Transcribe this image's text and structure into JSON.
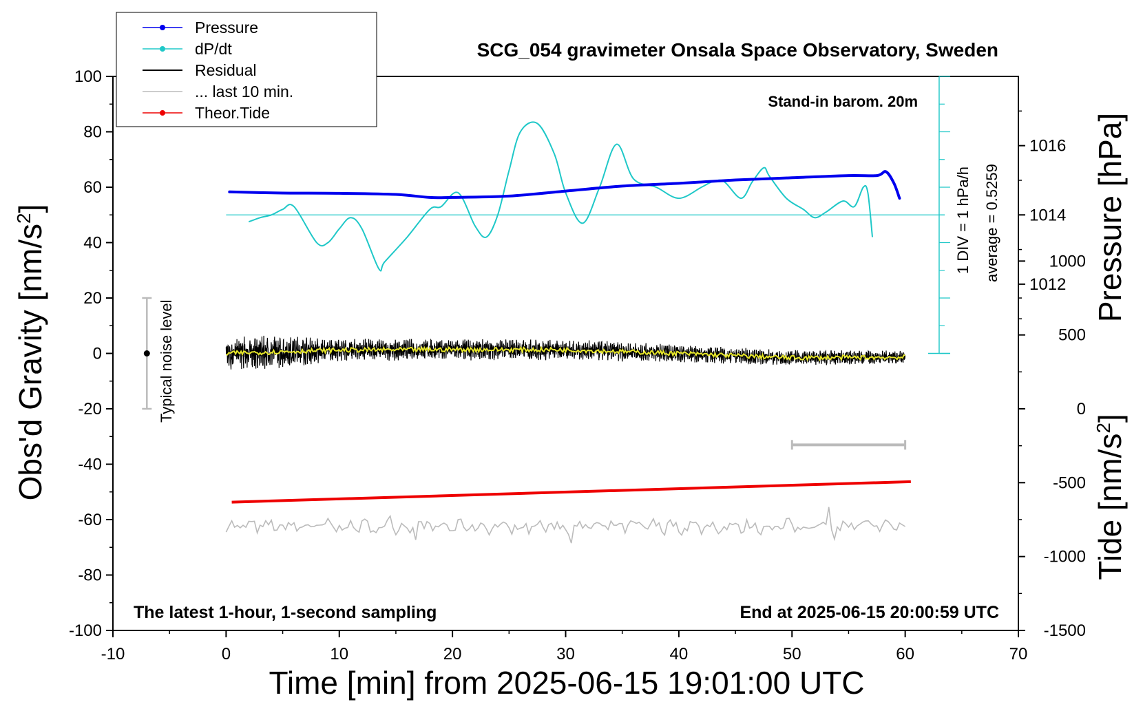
{
  "chart_data": {
    "type": "line",
    "title": "SCG_054 gravimeter Onsala Space Observatory, Sweden",
    "xlabel": "Time [min] from 2025-06-15 19:01:00 UTC",
    "ylabel_left_main": "Obs'd Gravity [nm/s",
    "ylabel_left_sup": "2",
    "ylabel_left_end": "]",
    "ylabel_right_top": "Pressure [hPa]",
    "ylabel_right_bottom_main": "Tide [nm/s",
    "ylabel_right_bottom_sup": "2",
    "ylabel_right_bottom_end": "]",
    "xlim": [
      -10,
      70
    ],
    "ylim": [
      -100,
      100
    ],
    "x_ticks": [
      -10,
      0,
      10,
      20,
      30,
      40,
      50,
      60,
      70
    ],
    "x_tick_labels": [
      "-10",
      "0",
      "10",
      "20",
      "30",
      "40",
      "50",
      "60",
      "70"
    ],
    "y_ticks": [
      -100,
      -80,
      -60,
      -40,
      -20,
      0,
      20,
      40,
      60,
      80,
      100
    ],
    "y_tick_labels": [
      "-100",
      "-80",
      "-60",
      "-40",
      "-20",
      "0",
      "20",
      "40",
      "60",
      "80",
      "100"
    ],
    "pressure_axis": {
      "ticks": [
        1012,
        1014,
        1016
      ],
      "tick_labels": [
        "1012",
        "1014",
        "1016"
      ],
      "pressure_at_0": 1014,
      "gravity_at_0": 50,
      "nms2_per_hpa": 12.5
    },
    "tide_axis": {
      "ticks": [
        -1500,
        -1000,
        -500,
        0,
        500,
        1000
      ],
      "tick_labels": [
        "-1500",
        "-1000",
        "-500",
        "0",
        "500",
        "1000"
      ],
      "nms2_tide_per_gravity_unit": 18.75,
      "tide_at_gravity_minus100": -1500
    },
    "annotations": {
      "barometer": "Stand-in barom. 20m",
      "latest": "The latest 1-hour, 1-second sampling",
      "end_at": "End at 2025-06-15 20:00:59 UTC",
      "div_label": "1 DIV = 1 hPa/h",
      "average_label": "average = 0.5259",
      "noise_label": "Typical noise level",
      "noise_range": [
        -20,
        20
      ],
      "noise_x": -7,
      "tenmin_bar": [
        50,
        60
      ],
      "tenmin_bar_y": -33
    },
    "legend": {
      "placement": "top-left",
      "entries": [
        {
          "label": "Pressure",
          "color": "#0000ee",
          "marker": true
        },
        {
          "label": "dP/dt",
          "color": "#1fc8c8",
          "marker": true
        },
        {
          "label": "Residual",
          "color": "#000000",
          "marker": false
        },
        {
          "label": "... last 10 min.",
          "color": "#bbbbbb",
          "marker": false
        },
        {
          "label": "Theor.Tide",
          "color": "#ee0000",
          "marker": true
        }
      ]
    },
    "series": [
      {
        "name": "Pressure",
        "color": "#0000ee",
        "x": [
          0.3,
          5,
          10,
          15,
          18,
          20,
          25,
          30,
          35,
          40,
          45,
          50,
          55,
          57.5,
          58.3,
          59,
          59.5
        ],
        "y": [
          58.3,
          57.9,
          57.8,
          57.4,
          56.3,
          56.3,
          56.8,
          58.6,
          60.4,
          61.4,
          62.6,
          63.4,
          64.2,
          64.2,
          65.6,
          61.5,
          56.0
        ]
      },
      {
        "name": "dP/dt",
        "color": "#1fc8c8",
        "x": [
          2,
          3,
          4,
          5,
          6,
          8,
          9,
          10,
          11,
          12,
          13.5,
          14,
          16,
          18,
          19,
          20.5,
          22,
          23,
          24,
          25,
          26,
          27.5,
          29,
          30,
          31.5,
          33,
          34.5,
          36,
          38,
          40,
          42,
          43,
          44,
          45.5,
          46.5,
          47.5,
          48,
          49.5,
          51,
          52,
          53,
          54.5,
          55.5,
          56.3,
          56.7,
          57.1
        ],
        "y": [
          47.5,
          49,
          50,
          52,
          53,
          40,
          40,
          45,
          49,
          45,
          30.5,
          33,
          42,
          52,
          53,
          58,
          46,
          42,
          50,
          66,
          80,
          83,
          72,
          58,
          47,
          60,
          75.5,
          63,
          60,
          56,
          60,
          62,
          62,
          56,
          62,
          67,
          64,
          56,
          52,
          49,
          51,
          55,
          53,
          60,
          58,
          42
        ]
      },
      {
        "name": "Residual",
        "color": "#000000",
        "x_start": 0,
        "x_end": 60,
        "baseline": [
          [
            0,
            0
          ],
          [
            10,
            1.2
          ],
          [
            20,
            1.4
          ],
          [
            30,
            1.3
          ],
          [
            40,
            0
          ],
          [
            50,
            -1.6
          ],
          [
            60,
            -1.4
          ]
        ],
        "amplitude": [
          [
            0,
            4.2
          ],
          [
            5,
            4
          ],
          [
            10,
            2.8
          ],
          [
            20,
            2.6
          ],
          [
            30,
            2.6
          ],
          [
            40,
            2.2
          ],
          [
            50,
            1.9
          ],
          [
            60,
            1.7
          ]
        ]
      },
      {
        "name": "... last 10 min.",
        "color": "#bbbbbb",
        "x_start": 0,
        "x_end": 60,
        "baseline": -62.5,
        "amplitude": 2
      },
      {
        "name": "Theor.Tide",
        "color": "#ee0000",
        "x": [
          0.5,
          60.5
        ],
        "y": [
          -53.7,
          -46.3
        ]
      }
    ]
  }
}
